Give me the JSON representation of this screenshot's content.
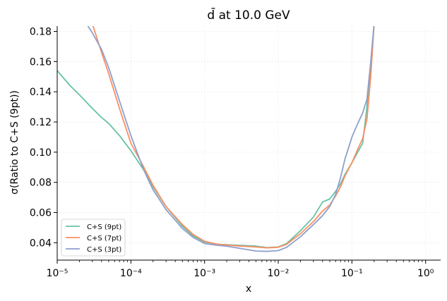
{
  "chart_data": {
    "type": "line",
    "title": "d̄ at 10.0 GeV",
    "xlabel": "x",
    "ylabel": "σ(Ratio to C+S (9pt))",
    "x_scale": "log",
    "xlim": [
      1e-05,
      1.6
    ],
    "ylim": [
      0.0285,
      0.1835
    ],
    "x_ticks": [
      {
        "value": 1e-05,
        "label": "10⁻⁵"
      },
      {
        "value": 0.0001,
        "label": "10⁻⁴"
      },
      {
        "value": 0.001,
        "label": "10⁻³"
      },
      {
        "value": 0.01,
        "label": "10⁻²"
      },
      {
        "value": 0.1,
        "label": "10⁻¹"
      },
      {
        "value": 1,
        "label": "10⁰"
      }
    ],
    "y_ticks": [
      {
        "value": 0.04,
        "label": "0.04"
      },
      {
        "value": 0.06,
        "label": "0.06"
      },
      {
        "value": 0.08,
        "label": "0.08"
      },
      {
        "value": 0.1,
        "label": "0.10"
      },
      {
        "value": 0.12,
        "label": "0.12"
      },
      {
        "value": 0.14,
        "label": "0.14"
      },
      {
        "value": 0.16,
        "label": "0.16"
      },
      {
        "value": 0.18,
        "label": "0.18"
      }
    ],
    "grid": true,
    "legend_position": "lower-left",
    "series": [
      {
        "name": "C+S (9pt)",
        "color": "#66c2a5",
        "points": [
          [
            1e-05,
            0.154
          ],
          [
            1.5e-05,
            0.144
          ],
          [
            2e-05,
            0.138
          ],
          [
            3e-05,
            0.129
          ],
          [
            4e-05,
            0.123
          ],
          [
            5e-05,
            0.119
          ],
          [
            7e-05,
            0.111
          ],
          [
            0.0001,
            0.101
          ],
          [
            0.00015,
            0.088
          ],
          [
            0.0002,
            0.077
          ],
          [
            0.0003,
            0.064
          ],
          [
            0.0005,
            0.051
          ],
          [
            0.0007,
            0.0445
          ],
          [
            0.001,
            0.0405
          ],
          [
            0.0015,
            0.039
          ],
          [
            0.002,
            0.0387
          ],
          [
            0.003,
            0.0383
          ],
          [
            0.005,
            0.0378
          ],
          [
            0.007,
            0.0368
          ],
          [
            0.01,
            0.0372
          ],
          [
            0.013,
            0.0395
          ],
          [
            0.02,
            0.048
          ],
          [
            0.03,
            0.057
          ],
          [
            0.04,
            0.067
          ],
          [
            0.05,
            0.069
          ],
          [
            0.06,
            0.074
          ],
          [
            0.07,
            0.079
          ],
          [
            0.08,
            0.085
          ],
          [
            0.1,
            0.093
          ],
          [
            0.12,
            0.1
          ],
          [
            0.14,
            0.106
          ],
          [
            0.16,
            0.13
          ],
          [
            0.18,
            0.158
          ],
          [
            0.2,
            0.185
          ]
        ]
      },
      {
        "name": "C+S (7pt)",
        "color": "#fc8d62",
        "points": [
          [
            3e-05,
            0.185
          ],
          [
            4e-05,
            0.166
          ],
          [
            5e-05,
            0.152
          ],
          [
            7e-05,
            0.129
          ],
          [
            0.0001,
            0.106
          ],
          [
            0.00015,
            0.09
          ],
          [
            0.0002,
            0.078
          ],
          [
            0.0003,
            0.064
          ],
          [
            0.0005,
            0.052
          ],
          [
            0.0007,
            0.0455
          ],
          [
            0.001,
            0.041
          ],
          [
            0.0015,
            0.039
          ],
          [
            0.002,
            0.0385
          ],
          [
            0.003,
            0.0378
          ],
          [
            0.005,
            0.0372
          ],
          [
            0.007,
            0.0366
          ],
          [
            0.01,
            0.037
          ],
          [
            0.013,
            0.039
          ],
          [
            0.02,
            0.046
          ],
          [
            0.03,
            0.054
          ],
          [
            0.04,
            0.061
          ],
          [
            0.05,
            0.065
          ],
          [
            0.06,
            0.071
          ],
          [
            0.07,
            0.077
          ],
          [
            0.08,
            0.084
          ],
          [
            0.1,
            0.093
          ],
          [
            0.12,
            0.102
          ],
          [
            0.14,
            0.109
          ],
          [
            0.16,
            0.122
          ],
          [
            0.18,
            0.15
          ],
          [
            0.2,
            0.185
          ]
        ]
      },
      {
        "name": "C+S (3pt)",
        "color": "#8da0cb",
        "points": [
          [
            2.5e-05,
            0.185
          ],
          [
            3e-05,
            0.179
          ],
          [
            4e-05,
            0.168
          ],
          [
            5e-05,
            0.156
          ],
          [
            7e-05,
            0.134
          ],
          [
            0.0001,
            0.111
          ],
          [
            0.00015,
            0.088
          ],
          [
            0.0002,
            0.075
          ],
          [
            0.0003,
            0.062
          ],
          [
            0.0005,
            0.0495
          ],
          [
            0.0007,
            0.0435
          ],
          [
            0.001,
            0.0395
          ],
          [
            0.0015,
            0.0383
          ],
          [
            0.002,
            0.0377
          ],
          [
            0.003,
            0.0363
          ],
          [
            0.005,
            0.0345
          ],
          [
            0.007,
            0.0343
          ],
          [
            0.01,
            0.0348
          ],
          [
            0.013,
            0.037
          ],
          [
            0.02,
            0.044
          ],
          [
            0.03,
            0.052
          ],
          [
            0.04,
            0.058
          ],
          [
            0.05,
            0.064
          ],
          [
            0.06,
            0.072
          ],
          [
            0.07,
            0.083
          ],
          [
            0.08,
            0.095
          ],
          [
            0.1,
            0.11
          ],
          [
            0.12,
            0.119
          ],
          [
            0.14,
            0.126
          ],
          [
            0.16,
            0.135
          ],
          [
            0.18,
            0.16
          ],
          [
            0.2,
            0.185
          ]
        ]
      }
    ]
  }
}
